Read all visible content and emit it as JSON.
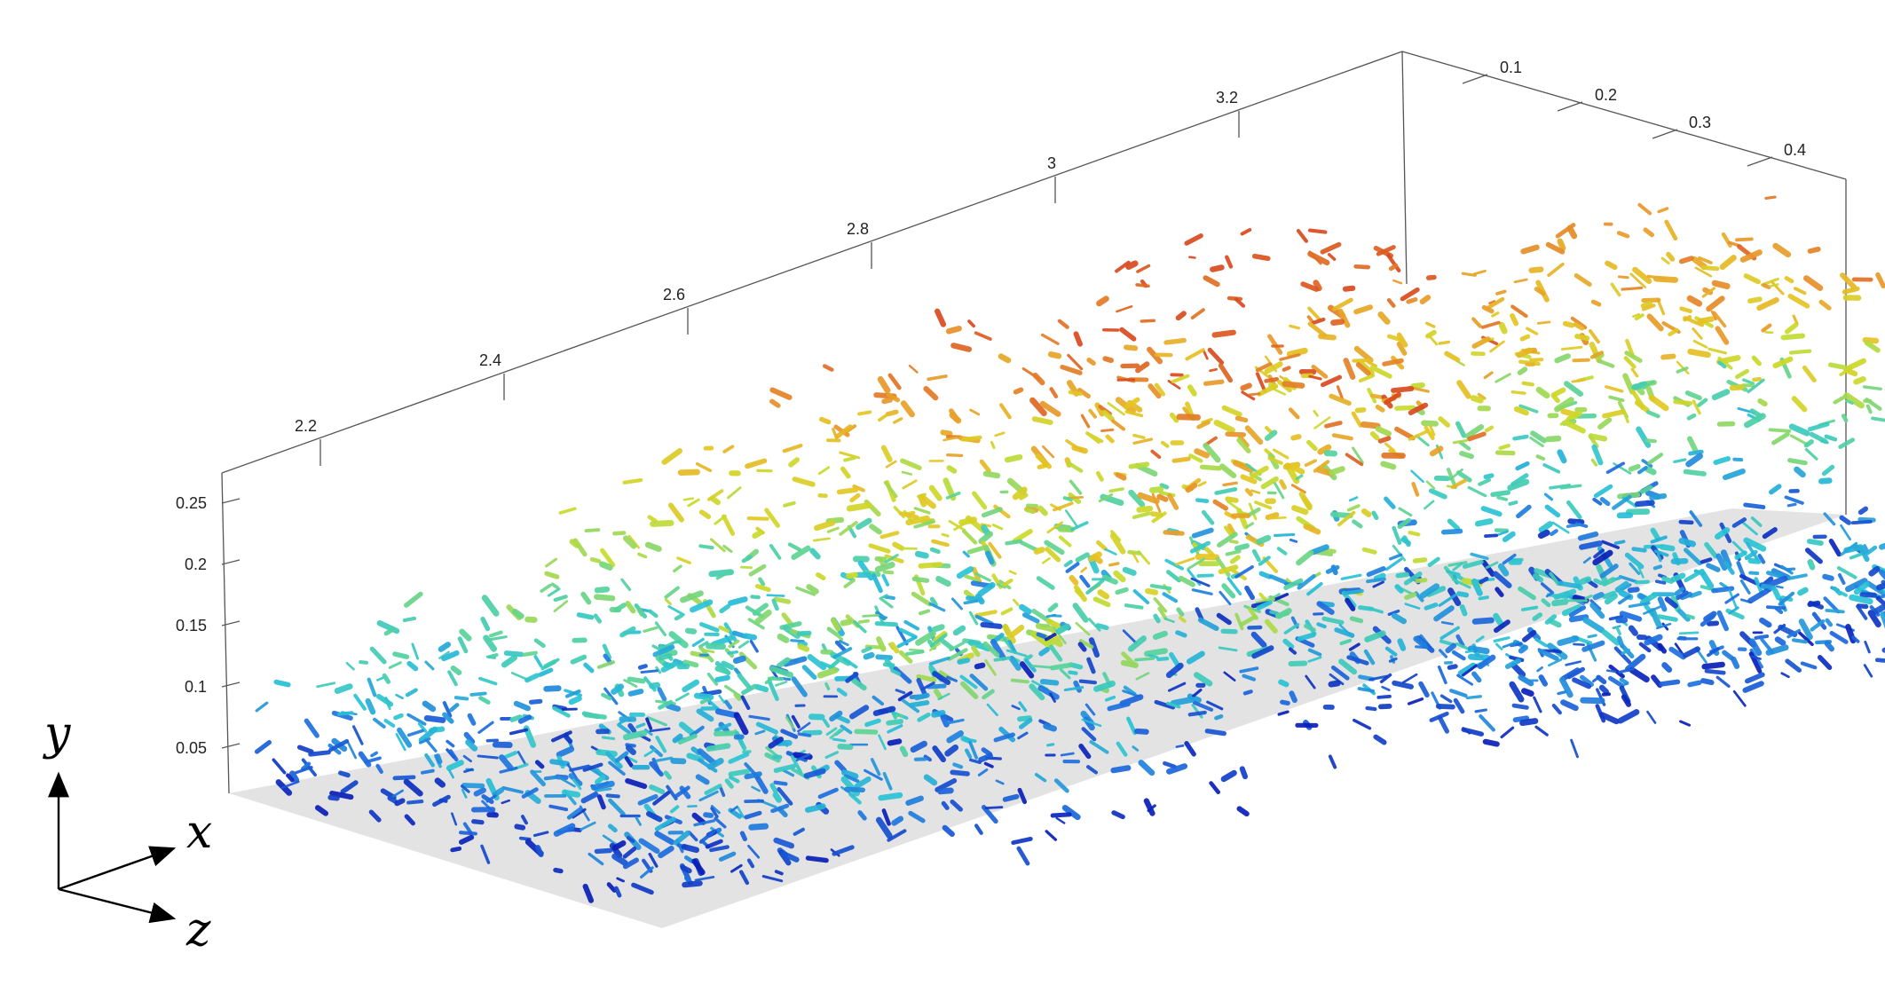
{
  "figure": {
    "x_ticks": [
      "2.2",
      "2.4",
      "2.6",
      "2.8",
      "3",
      "3.2"
    ],
    "y_ticks": [
      "0.05",
      "0.1",
      "0.15",
      "0.2",
      "0.25"
    ],
    "z_ticks": [
      "0.1",
      "0.2",
      "0.3",
      "0.4"
    ],
    "triad": {
      "y": "y",
      "x": "x",
      "z": "z"
    },
    "colormap": [
      "#0a1fb8",
      "#1e6fe0",
      "#29c3d6",
      "#57d39a",
      "#c8dc2c",
      "#e6c522",
      "#e8962a",
      "#d9491f"
    ]
  }
}
